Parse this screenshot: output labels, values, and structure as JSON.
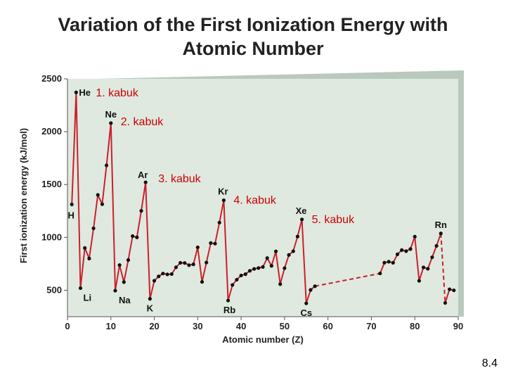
{
  "title": {
    "line1": "Variation of the First Ionization Energy with",
    "line2": "Atomic Number"
  },
  "slide_number": "8.4",
  "colors": {
    "line": "#cc1f2a",
    "point": "#111111",
    "panel": "#dfe9e0",
    "annotation": "#cc0000"
  },
  "chart_data": {
    "type": "line",
    "title": "Variation of the First Ionization Energy with Atomic Number",
    "xlabel": "Atomic number (Z)",
    "ylabel": "First ionization energy (kJ/mol)",
    "xlim": [
      0,
      90
    ],
    "ylim": [
      250,
      2500
    ],
    "x_ticks": [
      "0",
      "10",
      "20",
      "30",
      "40",
      "50",
      "60",
      "70",
      "80",
      "90"
    ],
    "y_ticks": [
      "500",
      "1000",
      "1500",
      "2000",
      "2500"
    ],
    "series": [
      {
        "name": "Z 1-57",
        "style": "solid",
        "x": [
          1,
          2,
          3,
          4,
          5,
          6,
          7,
          8,
          9,
          10,
          11,
          12,
          13,
          14,
          15,
          16,
          17,
          18,
          19,
          20,
          21,
          22,
          23,
          24,
          25,
          26,
          27,
          28,
          29,
          30,
          31,
          32,
          33,
          34,
          35,
          36,
          37,
          38,
          39,
          40,
          41,
          42,
          43,
          44,
          45,
          46,
          47,
          48,
          49,
          50,
          51,
          52,
          53,
          54,
          55,
          56,
          57
        ],
        "y": [
          1312,
          2372,
          520,
          900,
          800,
          1086,
          1402,
          1314,
          1681,
          2081,
          496,
          738,
          577,
          786,
          1012,
          1000,
          1251,
          1521,
          419,
          590,
          631,
          658,
          650,
          653,
          717,
          759,
          758,
          737,
          745,
          906,
          579,
          762,
          947,
          941,
          1140,
          1351,
          403,
          550,
          600,
          640,
          652,
          684,
          702,
          710,
          720,
          804,
          731,
          868,
          558,
          709,
          834,
          869,
          1008,
          1170,
          376,
          503,
          538
        ]
      },
      {
        "name": "Z 57-72 (gap)",
        "style": "dashed",
        "x": [
          57,
          72
        ],
        "y": [
          538,
          659
        ]
      },
      {
        "name": "Z 72-86",
        "style": "solid",
        "x": [
          72,
          73,
          74,
          75,
          76,
          77,
          78,
          79,
          80,
          81,
          82,
          83,
          84,
          85,
          86
        ],
        "y": [
          659,
          761,
          770,
          760,
          840,
          880,
          870,
          890,
          1007,
          589,
          716,
          703,
          812,
          920,
          1037
        ]
      },
      {
        "name": "Z 86-89 (gap)",
        "style": "dashed",
        "x": [
          86,
          87
        ],
        "y": [
          1037,
          380
        ]
      },
      {
        "name": "Z 87-89",
        "style": "solid",
        "x": [
          87,
          88,
          89
        ],
        "y": [
          380,
          509,
          499
        ]
      }
    ],
    "element_labels": [
      {
        "text": "H",
        "x": 1,
        "y": 1312
      },
      {
        "text": "He",
        "x": 2,
        "y": 2372
      },
      {
        "text": "Li",
        "x": 3,
        "y": 520
      },
      {
        "text": "Ne",
        "x": 10,
        "y": 2081
      },
      {
        "text": "Na",
        "x": 11,
        "y": 496
      },
      {
        "text": "Ar",
        "x": 18,
        "y": 1521
      },
      {
        "text": "K",
        "x": 19,
        "y": 419
      },
      {
        "text": "Kr",
        "x": 36,
        "y": 1351
      },
      {
        "text": "Rb",
        "x": 37,
        "y": 403
      },
      {
        "text": "Xe",
        "x": 54,
        "y": 1170
      },
      {
        "text": "Cs",
        "x": 55,
        "y": 376
      },
      {
        "text": "Rn",
        "x": 86,
        "y": 1037
      }
    ],
    "annotations": [
      {
        "text": "1. kabuk",
        "x": 2,
        "y": 2372
      },
      {
        "text": "2. kabuk",
        "x": 10,
        "y": 2081
      },
      {
        "text": "3. kabuk",
        "x": 18,
        "y": 1521
      },
      {
        "text": "4. kabuk",
        "x": 36,
        "y": 1351
      },
      {
        "text": "5. kabuk",
        "x": 54,
        "y": 1170
      }
    ]
  }
}
